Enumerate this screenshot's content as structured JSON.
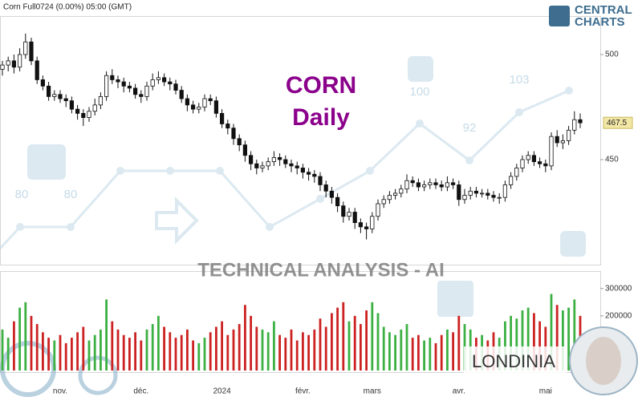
{
  "header": {
    "instrument": "Corn Full0724  (0.00%)  05:00 (GMT)",
    "logo_top": "CENTRAL",
    "logo_bottom": "CHARTS"
  },
  "watermark": {
    "labels": [
      "80",
      "80",
      "100",
      "92",
      "103"
    ],
    "banner": "TECHNICAL  ANALYSIS - AI",
    "brand": "LONDINIA"
  },
  "chart_data": [
    {
      "type": "candlestick",
      "title": "CORN",
      "subtitle": "Daily",
      "up_color": "#ffffff",
      "down_color": "#111111",
      "ylim": [
        400,
        518
      ],
      "yticks": [
        450,
        500
      ],
      "open": [
        493,
        495,
        497,
        494,
        500,
        506,
        497,
        488,
        485,
        480,
        481,
        479,
        478,
        474,
        472,
        470,
        473,
        476,
        480,
        490,
        488,
        487,
        485,
        484,
        481,
        480,
        485,
        488,
        489,
        487,
        486,
        483,
        479,
        476,
        474,
        475,
        479,
        478,
        472,
        467,
        465,
        460,
        457,
        452,
        448,
        446,
        447,
        449,
        451,
        450,
        448,
        447,
        446,
        444,
        443,
        442,
        438,
        435,
        432,
        428,
        423,
        425,
        420,
        418,
        417,
        423,
        429,
        431,
        433,
        434,
        436,
        440,
        439,
        437,
        438,
        439,
        438,
        437,
        439,
        438,
        431,
        433,
        435,
        434,
        434,
        433,
        432,
        432,
        438,
        442,
        446,
        450,
        452,
        449,
        448,
        447,
        461,
        458,
        459,
        464,
        469
      ],
      "high": [
        497,
        499,
        500,
        503,
        510,
        508,
        499,
        490,
        487,
        483,
        483,
        481,
        480,
        476,
        474,
        475,
        479,
        482,
        492,
        493,
        490,
        489,
        487,
        486,
        483,
        487,
        491,
        492,
        491,
        489,
        488,
        485,
        481,
        478,
        477,
        481,
        481,
        480,
        474,
        469,
        467,
        462,
        459,
        454,
        450,
        449,
        451,
        454,
        453,
        452,
        450,
        449,
        448,
        446,
        445,
        444,
        440,
        437,
        434,
        430,
        427,
        427,
        422,
        420,
        425,
        431,
        433,
        435,
        436,
        438,
        443,
        442,
        441,
        440,
        441,
        441,
        440,
        442,
        441,
        440,
        436,
        437,
        437,
        436,
        436,
        435,
        434,
        440,
        444,
        448,
        452,
        454,
        454,
        451,
        450,
        463,
        464,
        462,
        466,
        473,
        472
      ],
      "low": [
        490,
        492,
        491,
        492,
        498,
        495,
        486,
        483,
        478,
        478,
        477,
        475,
        472,
        469,
        466,
        468,
        471,
        474,
        478,
        486,
        484,
        482,
        482,
        479,
        477,
        478,
        483,
        486,
        485,
        483,
        481,
        477,
        473,
        472,
        472,
        473,
        476,
        470,
        465,
        462,
        457,
        454,
        449,
        445,
        443,
        444,
        445,
        447,
        447,
        446,
        444,
        443,
        441,
        440,
        439,
        435,
        432,
        429,
        425,
        420,
        421,
        417,
        415,
        412,
        415,
        421,
        427,
        429,
        431,
        432,
        434,
        437,
        435,
        435,
        436,
        436,
        435,
        435,
        436,
        428,
        429,
        431,
        432,
        432,
        431,
        430,
        429,
        430,
        436,
        440,
        444,
        448,
        447,
        446,
        444,
        445,
        456,
        455,
        457,
        462,
        465
      ],
      "close": [
        495,
        497,
        494,
        500,
        506,
        497,
        488,
        485,
        480,
        481,
        479,
        478,
        474,
        472,
        470,
        473,
        476,
        480,
        490,
        488,
        487,
        485,
        484,
        481,
        480,
        485,
        488,
        489,
        487,
        486,
        483,
        479,
        476,
        474,
        475,
        479,
        478,
        472,
        467,
        465,
        460,
        457,
        452,
        448,
        446,
        447,
        449,
        451,
        450,
        448,
        447,
        446,
        444,
        443,
        442,
        438,
        435,
        432,
        428,
        423,
        425,
        420,
        418,
        417,
        423,
        429,
        431,
        433,
        434,
        436,
        440,
        439,
        437,
        438,
        439,
        438,
        437,
        439,
        438,
        431,
        433,
        435,
        434,
        434,
        433,
        432,
        432,
        438,
        442,
        446,
        450,
        452,
        449,
        448,
        447,
        461,
        458,
        459,
        464,
        469,
        467.5
      ],
      "categories": [
        null,
        null,
        null,
        null,
        null,
        null,
        null,
        null,
        null,
        null,
        "nov.",
        null,
        null,
        null,
        null,
        null,
        null,
        null,
        null,
        null,
        null,
        null,
        null,
        null,
        "déc.",
        null,
        null,
        null,
        null,
        null,
        null,
        null,
        null,
        null,
        null,
        null,
        null,
        null,
        "2024",
        null,
        null,
        null,
        null,
        null,
        null,
        null,
        null,
        null,
        null,
        null,
        null,
        null,
        "févr.",
        null,
        null,
        null,
        null,
        null,
        null,
        null,
        null,
        null,
        null,
        null,
        "mars",
        null,
        null,
        null,
        null,
        null,
        null,
        null,
        null,
        null,
        null,
        null,
        null,
        null,
        null,
        "avr.",
        null,
        null,
        null,
        null,
        null,
        null,
        null,
        null,
        null,
        null,
        null,
        null,
        null,
        null,
        "mai",
        null,
        null,
        null,
        null,
        null,
        null
      ]
    },
    {
      "type": "bar",
      "up_color": "#3cb043",
      "down_color": "#cc2222",
      "ylim": [
        0,
        358000
      ],
      "yticks": [
        200000,
        300000
      ],
      "values": [
        150000,
        120000,
        180000,
        230000,
        250000,
        200000,
        170000,
        140000,
        120000,
        110000,
        130000,
        100000,
        120000,
        140000,
        160000,
        110000,
        130000,
        150000,
        260000,
        180000,
        150000,
        130000,
        120000,
        140000,
        110000,
        150000,
        170000,
        200000,
        160000,
        140000,
        120000,
        130000,
        150000,
        110000,
        100000,
        120000,
        140000,
        160000,
        180000,
        130000,
        150000,
        170000,
        240000,
        200000,
        160000,
        150000,
        140000,
        180000,
        130000,
        120000,
        150000,
        110000,
        140000,
        130000,
        150000,
        190000,
        160000,
        210000,
        230000,
        250000,
        180000,
        200000,
        170000,
        220000,
        250000,
        210000,
        160000,
        140000,
        130000,
        150000,
        170000,
        120000,
        130000,
        110000,
        120000,
        100000,
        130000,
        150000,
        140000,
        200000,
        170000,
        150000,
        120000,
        130000,
        110000,
        140000,
        120000,
        180000,
        200000,
        190000,
        220000,
        230000,
        210000,
        180000,
        160000,
        280000,
        240000,
        220000,
        230000,
        260000,
        200000
      ]
    }
  ]
}
